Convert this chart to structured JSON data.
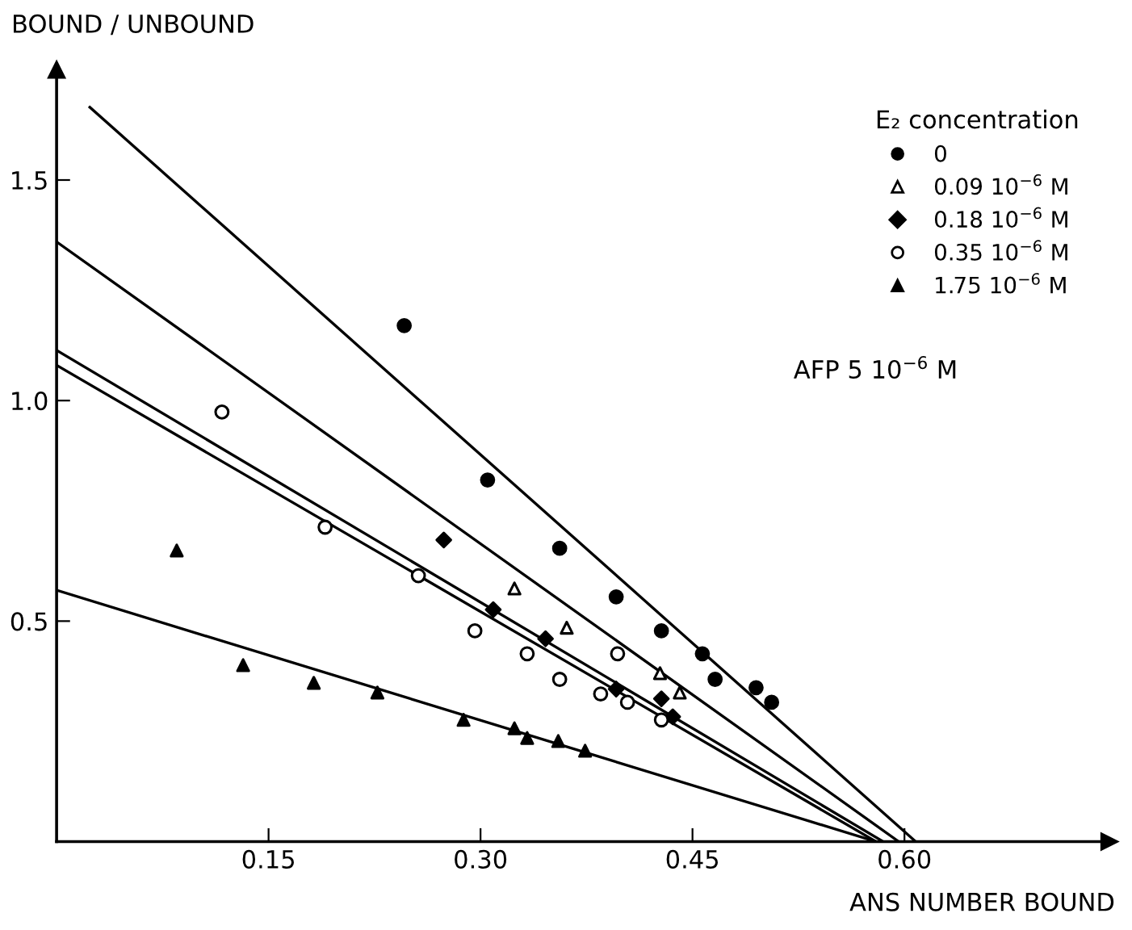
{
  "chart_data": {
    "type": "scatter",
    "xlabel": "ANS NUMBER BOUND",
    "ylabel": "BOUND / UNBOUND",
    "legend_title": "E₂ concentration",
    "legend": "top right",
    "grid": false,
    "xlim": [
      0,
      0.745
    ],
    "ylim": [
      0,
      1.75
    ],
    "xticks": [
      {
        "value": 0.15,
        "label": "0.15"
      },
      {
        "value": 0.3,
        "label": "0.30"
      },
      {
        "value": 0.45,
        "label": "0.45"
      },
      {
        "value": 0.6,
        "label": "0.60"
      }
    ],
    "yticks": [
      {
        "value": 0.5,
        "label": "0.5"
      },
      {
        "value": 1.0,
        "label": "1.0"
      },
      {
        "value": 1.5,
        "label": "1.5"
      }
    ],
    "annotations": [
      "AFP 5 10$^{−6}$ M"
    ],
    "series": [
      {
        "name": "0",
        "marker": "circle",
        "color": "#000000",
        "x": [
          0.246,
          0.305,
          0.356,
          0.396,
          0.428,
          0.457,
          0.466,
          0.495,
          0.506
        ],
        "values": [
          1.17,
          0.82,
          0.665,
          0.555,
          0.478,
          0.426,
          0.368,
          0.349,
          0.316
        ]
      },
      {
        "name": "0.09 10$^{−6}$ M",
        "marker": "triangle",
        "color": "#ffffff",
        "x": [
          0.324,
          0.361,
          0.427,
          0.441
        ],
        "values": [
          0.574,
          0.485,
          0.382,
          0.338
        ]
      },
      {
        "name": "0.18 10$^{−6}$ M",
        "marker": "diamond",
        "color": "#000000",
        "x": [
          0.274,
          0.309,
          0.346,
          0.396,
          0.428,
          0.436
        ],
        "values": [
          0.684,
          0.526,
          0.46,
          0.346,
          0.324,
          0.283
        ]
      },
      {
        "name": "0.35 10$^{−6}$ M",
        "marker": "circle",
        "color": "#ffffff",
        "x": [
          0.117,
          0.19,
          0.256,
          0.296,
          0.333,
          0.356,
          0.385,
          0.397,
          0.404,
          0.428
        ],
        "values": [
          0.974,
          0.713,
          0.603,
          0.478,
          0.426,
          0.368,
          0.335,
          0.426,
          0.316,
          0.276
        ]
      },
      {
        "name": "1.75 10$^{−6}$ M",
        "marker": "triangle",
        "color": "#000000",
        "x": [
          0.085,
          0.132,
          0.182,
          0.227,
          0.288,
          0.324,
          0.333,
          0.355,
          0.374
        ],
        "values": [
          0.66,
          0.4,
          0.36,
          0.338,
          0.276,
          0.257,
          0.235,
          0.228,
          0.206
        ]
      },
      {
        "type": "line",
        "color": "#000000",
        "line_style": "solid",
        "x": [
          0.0235,
          0.608
        ],
        "values": [
          1.665,
          0
        ]
      },
      {
        "type": "line",
        "color": "#000000",
        "line_style": "solid",
        "x": [
          0,
          0.596
        ],
        "values": [
          1.36,
          0
        ]
      },
      {
        "type": "line",
        "color": "#000000",
        "line_style": "solid",
        "x": [
          0,
          0.585
        ],
        "values": [
          1.114,
          0
        ]
      },
      {
        "type": "line",
        "color": "#000000",
        "line_style": "solid",
        "x": [
          0,
          0.58
        ],
        "values": [
          1.08,
          0
        ]
      },
      {
        "type": "line",
        "color": "#000000",
        "line_style": "solid",
        "x": [
          0,
          0.58
        ],
        "values": [
          0.57,
          0
        ]
      }
    ]
  }
}
